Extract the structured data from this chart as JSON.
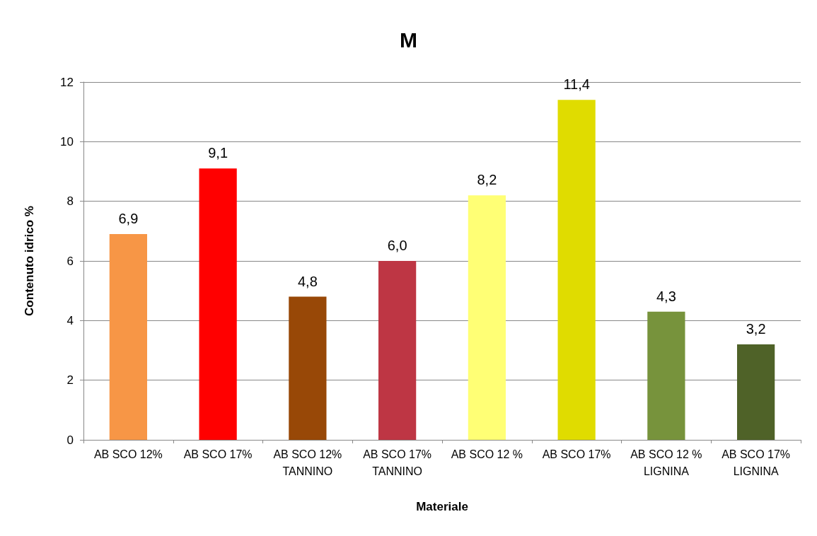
{
  "chart_data": {
    "type": "bar",
    "title": "M",
    "xlabel": "Materiale",
    "ylabel": "Contenuto idrico %",
    "categories": [
      "AB SCO 12%",
      "AB SCO 17%",
      "AB SCO 12%\nTANNINO",
      "AB SCO 17%\nTANNINO",
      "AB SCO 12 %",
      "AB SCO 17%",
      "AB SCO 12 %\nLIGNINA",
      "AB SCO 17%\nLIGNINA"
    ],
    "values": [
      6.9,
      9.1,
      4.8,
      6.0,
      8.2,
      11.4,
      4.3,
      3.2
    ],
    "value_labels": [
      "6,9",
      "9,1",
      "4,8",
      "6,0",
      "8,2",
      "11,4",
      "4,3",
      "3,2"
    ],
    "colors": [
      "#f79646",
      "#ff0000",
      "#984807",
      "#be3644",
      "#ffff75",
      "#e0dc00",
      "#77933c",
      "#4f6228"
    ],
    "ylim": [
      0,
      12
    ],
    "yticks": [
      0,
      2,
      4,
      6,
      8,
      10,
      12
    ],
    "grid": "y"
  }
}
